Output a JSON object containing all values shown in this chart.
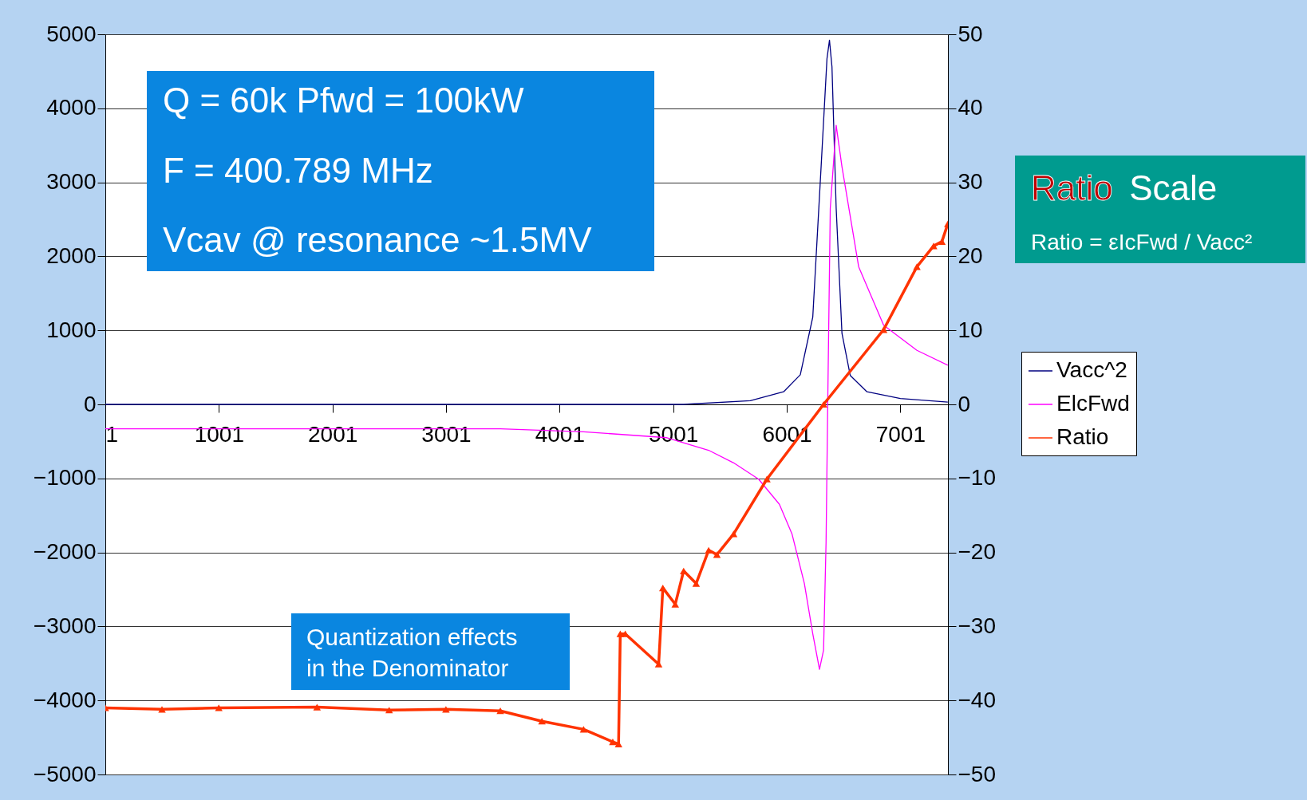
{
  "chart_data": {
    "type": "line",
    "annotations": [
      "Q = 60k Pfwd = 100kW",
      "F = 400.789 MHz",
      "Vcav @ resonance ~1.5MV",
      "Quantization effects\nin the Denominator",
      "Ratio Scale",
      "Ratio = εIcFwd / Vacc²"
    ],
    "xlim": [
      1,
      7420
    ],
    "xticks": [
      1,
      1001,
      2001,
      3001,
      4001,
      5001,
      6001,
      7001
    ],
    "ylim": [
      -5000,
      5000
    ],
    "yticks": [
      -5000,
      -4000,
      -3000,
      -2000,
      -1000,
      0,
      1000,
      2000,
      3000,
      4000,
      5000
    ],
    "y2lim": [
      -50,
      50
    ],
    "y2ticks": [
      -50,
      -40,
      -30,
      -20,
      -10,
      0,
      10,
      20,
      30,
      40,
      50
    ],
    "grid": "y",
    "legend": "right",
    "series": [
      {
        "name": "Vacc^2",
        "color": "#000080",
        "x": [
          1,
          5093,
          5680,
          5973,
          6120,
          6230,
          6303,
          6355,
          6377,
          6399,
          6436,
          6487,
          6560,
          6707,
          7001,
          7419
        ],
        "values": [
          0,
          0,
          50,
          170,
          400,
          1180,
          3200,
          4670,
          4920,
          4560,
          2650,
          960,
          390,
          170,
          80,
          30
        ]
      },
      {
        "name": "ElcFwd",
        "color": "#ff00ff",
        "x": [
          1,
          3479,
          4212,
          4946,
          5313,
          5533,
          5753,
          5936,
          6047,
          6156,
          6230,
          6289,
          6325,
          6347,
          6362,
          6384,
          6436,
          6487,
          6634,
          6854,
          7147,
          7419
        ],
        "values": [
          -330,
          -330,
          -370,
          -450,
          -620,
          -790,
          -1010,
          -1350,
          -1750,
          -2420,
          -3100,
          -3580,
          -3320,
          -1860,
          50,
          2650,
          3770,
          3210,
          1860,
          1070,
          730,
          530
        ]
      },
      {
        "name": "Ratio",
        "color": "#ff3300",
        "marker": "triangle",
        "axis": "y2",
        "x": [
          1,
          500,
          1000,
          1865,
          2500,
          3000,
          3479,
          3845,
          4212,
          4469,
          4520,
          4535,
          4579,
          4873,
          4910,
          5019,
          5093,
          5203,
          5313,
          5386,
          5533,
          5826,
          6325,
          6854,
          7147,
          7294,
          7367,
          7419
        ],
        "values": [
          -41,
          -41.2,
          -41,
          -40.9,
          -41.3,
          -41.2,
          -41.4,
          -42.8,
          -43.9,
          -45.6,
          -45.9,
          -31,
          -31,
          -35.1,
          -24.8,
          -27,
          -22.5,
          -24.2,
          -19.7,
          -20.3,
          -17.5,
          -10.1,
          0,
          10.1,
          18.6,
          21.4,
          22,
          24.4
        ]
      }
    ]
  }
}
